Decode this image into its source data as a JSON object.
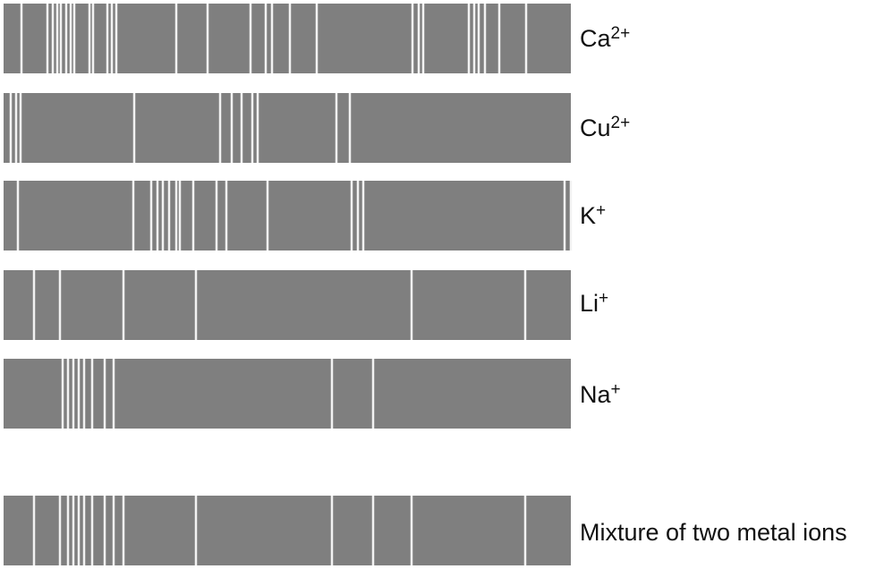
{
  "colors": {
    "band": "#7f7f7f",
    "line": "#f2f2f2",
    "text": "#111111"
  },
  "spectra": [
    {
      "id": "ca",
      "label": {
        "base": "Ca",
        "charge": "2+"
      },
      "lines": [
        20,
        49,
        55,
        60,
        64,
        70,
        75,
        79,
        96,
        100,
        116,
        121,
        126,
        193,
        228,
        276,
        293,
        300,
        320,
        350,
        457,
        464,
        469,
        520,
        526,
        531,
        538,
        554,
        584
      ]
    },
    {
      "id": "cu",
      "label": {
        "base": "Cu",
        "charge": "2+"
      },
      "lines": [
        8,
        14,
        19,
        146,
        242,
        255,
        266,
        278,
        284,
        372,
        387
      ]
    },
    {
      "id": "k",
      "label": {
        "base": "K",
        "charge": "+"
      },
      "lines": [
        16,
        145,
        165,
        172,
        178,
        185,
        193,
        197,
        212,
        238,
        249,
        295,
        389,
        396,
        402,
        627,
        634
      ]
    },
    {
      "id": "li",
      "label": {
        "base": "Li",
        "charge": "+"
      },
      "lines": [
        34,
        63,
        134,
        215,
        456,
        583
      ]
    },
    {
      "id": "na",
      "label": {
        "base": "Na",
        "charge": "+"
      },
      "lines": [
        66,
        72,
        78,
        84,
        90,
        99,
        113,
        123,
        367,
        413
      ]
    }
  ],
  "mixture": {
    "label": "Mixture of two metal ions",
    "lines": [
      34,
      63,
      72,
      78,
      84,
      90,
      99,
      113,
      123,
      134,
      215,
      367,
      413,
      456,
      583
    ]
  }
}
